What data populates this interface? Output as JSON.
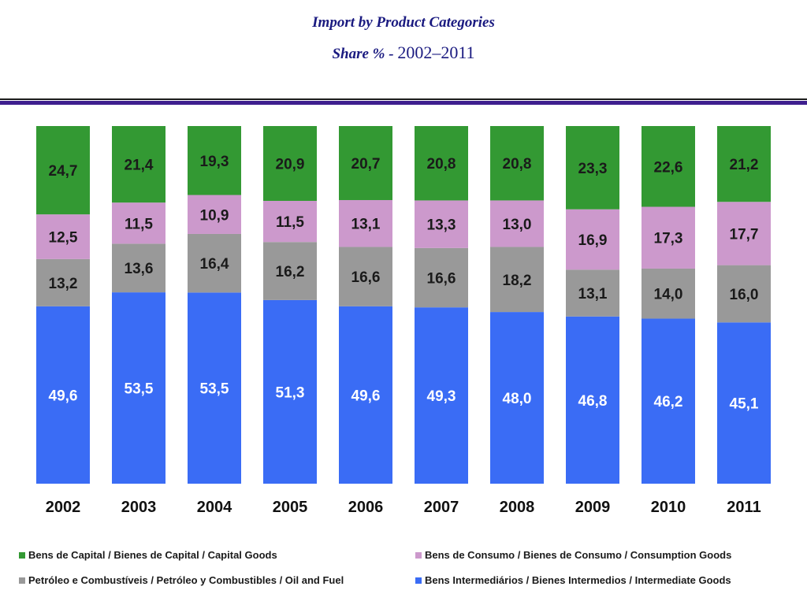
{
  "header": {
    "title": "Import by Product Categories",
    "subtitle_label": "Share % -",
    "subtitle_years": "2002–2011"
  },
  "chart_data": {
    "type": "bar",
    "stacked": true,
    "normalized_percent": true,
    "title": "Import by Product Categories",
    "subtitle": "Share % - 2002–2011",
    "categories": [
      "2002",
      "2003",
      "2004",
      "2005",
      "2006",
      "2007",
      "2008",
      "2009",
      "2010",
      "2011"
    ],
    "series": [
      {
        "name": "Bens Intermediários / Bienes Intermedios / Intermediate Goods",
        "color": "#3a6cf5",
        "values": [
          49.6,
          53.5,
          53.5,
          51.3,
          49.6,
          49.3,
          48.0,
          46.8,
          46.2,
          45.1
        ],
        "labels": [
          "49,6",
          "53,5",
          "53,5",
          "51,3",
          "49,6",
          "49,3",
          "48,0",
          "46,8",
          "46,2",
          "45,1"
        ]
      },
      {
        "name": "Petróleo e Combustíveis / Petróleo y Combustibles / Oil and Fuel",
        "color": "#999999",
        "values": [
          13.2,
          13.6,
          16.4,
          16.2,
          16.6,
          16.6,
          18.2,
          13.1,
          14.0,
          16.0
        ],
        "labels": [
          "13,2",
          "13,6",
          "16,4",
          "16,2",
          "16,6",
          "16,6",
          "18,2",
          "13,1",
          "14,0",
          "16,0"
        ]
      },
      {
        "name": "Bens de Consumo / Bienes de Consumo / Consumption Goods",
        "color": "#cc99cc",
        "values": [
          12.5,
          11.5,
          10.9,
          11.5,
          13.1,
          13.3,
          13.0,
          16.9,
          17.3,
          17.7
        ],
        "labels": [
          "12,5",
          "11,5",
          "10,9",
          "11,5",
          "13,1",
          "13,3",
          "13,0",
          "16,9",
          "17,3",
          "17,7"
        ]
      },
      {
        "name": "Bens de Capital / Bienes de Capital / Capital Goods",
        "color": "#339933",
        "values": [
          24.7,
          21.4,
          19.3,
          20.9,
          20.7,
          20.8,
          20.8,
          23.3,
          22.6,
          21.2
        ],
        "labels": [
          "24,7",
          "21,4",
          "19,3",
          "20,9",
          "20,7",
          "20,8",
          "20,8",
          "23,3",
          "22,6",
          "21,2"
        ]
      }
    ],
    "ylim": [
      0,
      100
    ],
    "xlabel": "",
    "ylabel": "",
    "grid": false,
    "legend_position": "bottom"
  }
}
